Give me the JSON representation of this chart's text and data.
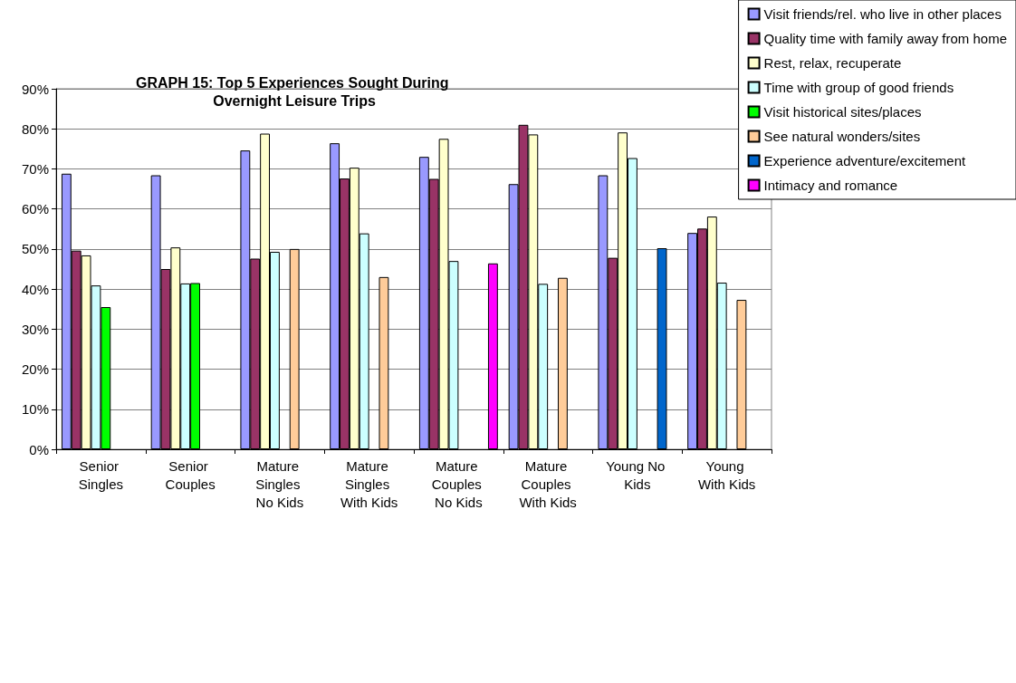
{
  "chart_data": {
    "type": "bar",
    "title": "GRAPH 15: Top 5 Experiences Sought During Overnight Leisure Trips",
    "categories": [
      "Senior Singles",
      "Senior Couples",
      "Mature Singles No Kids",
      "Mature Singles With Kids",
      "Mature Couples No Kids",
      "Mature Couples With Kids",
      "Young No Kids",
      "Young With Kids"
    ],
    "series": [
      {
        "name": "Visit friends/rel. who live in other places",
        "color": "#9999ff",
        "values": [
          68.8,
          68.4,
          74.6,
          76.4,
          73,
          66.2,
          68.4,
          54
        ]
      },
      {
        "name": "Quality time with family away from home",
        "color": "#993366",
        "values": [
          49.6,
          45,
          47.6,
          67.6,
          67.5,
          81,
          47.8,
          55.1
        ]
      },
      {
        "name": "Rest, relax, recuperate",
        "color": "#ffffcc",
        "values": [
          48.4,
          50.4,
          78.8,
          70.3,
          77.5,
          78.6,
          79.1,
          58.1
        ]
      },
      {
        "name": "Time with group of good friends",
        "color": "#ccffff",
        "values": [
          40.9,
          41.4,
          49.3,
          53.9,
          47,
          41.3,
          72.7,
          41.6
        ]
      },
      {
        "name": "Visit historical sites/places",
        "color": "#00ff00",
        "values": [
          35.5,
          41.5,
          null,
          null,
          null,
          null,
          null,
          null
        ]
      },
      {
        "name": "See natural wonders/sites",
        "color": "#ffcc99",
        "values": [
          null,
          null,
          50,
          43,
          null,
          42.8,
          null,
          37.3
        ]
      },
      {
        "name": "Experience adventure/excitement",
        "color": "#0066cc",
        "values": [
          null,
          null,
          null,
          null,
          null,
          null,
          50.2,
          null
        ]
      },
      {
        "name": "Intimacy and romance",
        "color": "#ff00ff",
        "values": [
          null,
          null,
          null,
          null,
          46.4,
          null,
          null,
          null
        ]
      }
    ],
    "ylim": [
      0,
      90
    ],
    "yticks": [
      {
        "value": 0,
        "label": "0%"
      },
      {
        "value": 10,
        "label": "10%"
      },
      {
        "value": 20,
        "label": "20%"
      },
      {
        "value": 30,
        "label": "30%"
      },
      {
        "value": 40,
        "label": "40%"
      },
      {
        "value": 50,
        "label": "50%"
      },
      {
        "value": 60,
        "label": "60%"
      },
      {
        "value": 70,
        "label": "70%"
      },
      {
        "value": 80,
        "label": "80%"
      },
      {
        "value": 90,
        "label": "90%"
      }
    ],
    "grid": "y",
    "legend": "top right"
  }
}
